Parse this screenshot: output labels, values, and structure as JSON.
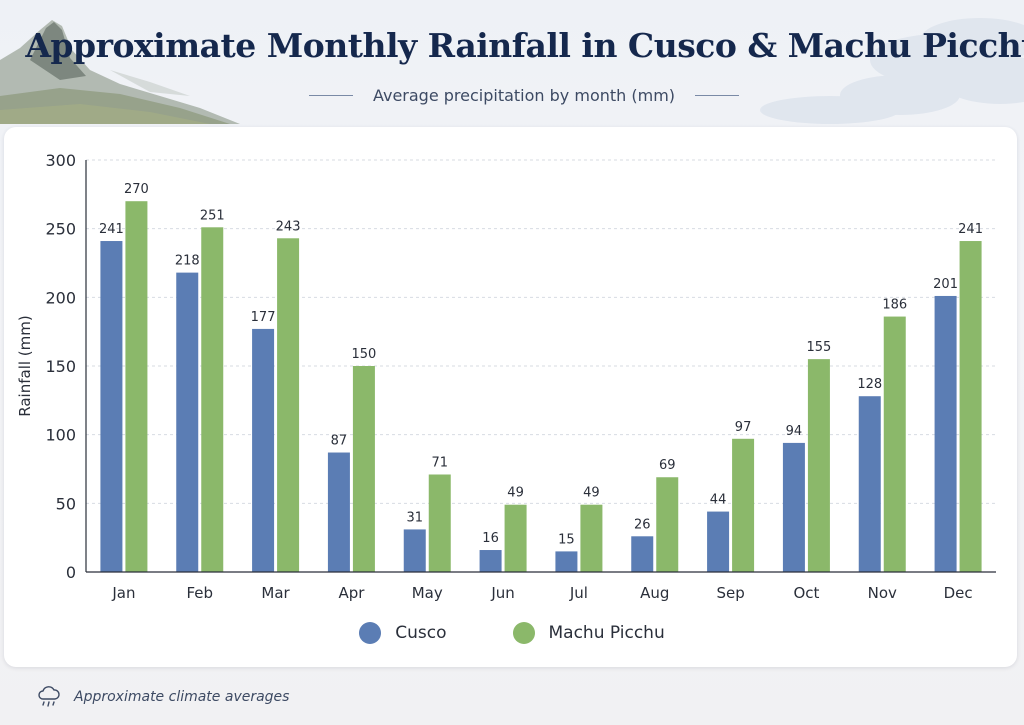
{
  "header": {
    "title": "Approximate Monthly Rainfall in Cusco & Machu Picchu",
    "subtitle": "Average precipitation by month (mm)"
  },
  "footnote": {
    "icon": "cloud-rain-icon",
    "text": "Approximate climate averages"
  },
  "colors": {
    "cusco": "#5b7db4",
    "machu_picchu": "#8bb86a",
    "grid": "#d7dbe2",
    "text": "#2a2f3a"
  },
  "chart_data": {
    "type": "bar",
    "title": "Approximate Monthly Rainfall in Cusco & Machu Picchu",
    "subtitle": "Average precipitation by month (mm)",
    "xlabel": "",
    "ylabel": "Rainfall (mm)",
    "ylim": [
      0,
      300
    ],
    "yticks": [
      0,
      50,
      100,
      150,
      200,
      250,
      300
    ],
    "grid": true,
    "legend_position": "bottom",
    "categories": [
      "Jan",
      "Feb",
      "Mar",
      "Apr",
      "May",
      "Jun",
      "Jul",
      "Aug",
      "Sep",
      "Oct",
      "Nov",
      "Dec"
    ],
    "series": [
      {
        "name": "Cusco",
        "color": "#5b7db4",
        "values": [
          241,
          218,
          177,
          87,
          31,
          16,
          15,
          26,
          44,
          94,
          128,
          201
        ]
      },
      {
        "name": "Machu Picchu",
        "color": "#8bb86a",
        "values": [
          270,
          251,
          243,
          150,
          71,
          49,
          49,
          69,
          97,
          155,
          186,
          241
        ]
      }
    ]
  }
}
